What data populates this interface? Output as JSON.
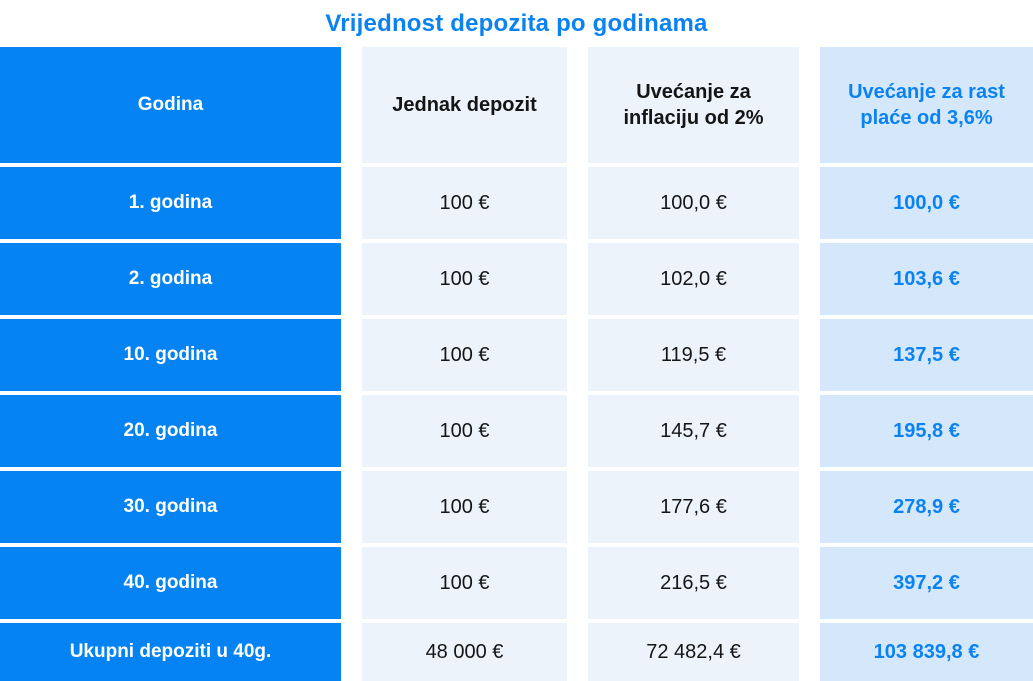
{
  "page": {
    "title": "Vrijednost depozita po godinama"
  },
  "colors": {
    "primary_blue": "#0583f2",
    "accent_text_blue": "#0b82f2",
    "light_cell_bg": "#ecf3fb",
    "accent_cell_bg": "#d5e8fb",
    "text_dark": "#151515",
    "text_white": "#ffffff",
    "page_bg": "#ffffff"
  },
  "chart_data": {
    "type": "table",
    "title": "Vrijednost depozita po godinama",
    "columns": [
      "Godina",
      "Jednak depozit",
      "Uvećanje za inflaciju od 2%",
      "Uvećanje za rast plaće od 3,6%"
    ],
    "rows": [
      [
        "1. godina",
        "100 €",
        "100,0 €",
        "100,0 €"
      ],
      [
        "2. godina",
        "100 €",
        "102,0 €",
        "103,6 €"
      ],
      [
        "10. godina",
        "100 €",
        "119,5 €",
        "137,5 €"
      ],
      [
        "20. godina",
        "100 €",
        "145,7 €",
        "195,8 €"
      ],
      [
        "30. godina",
        "100 €",
        "177,6 €",
        "278,9 €"
      ],
      [
        "40. godina",
        "100 €",
        "216,5 €",
        "397,2 €"
      ],
      [
        "Ukupni depoziti u 40g.",
        "48 000 €",
        "72 482,4 €",
        "103 839,8 €"
      ]
    ],
    "layout": {
      "header_row": true,
      "totals_row_label": "Ukupni depoziti u 40g.",
      "column_emphasis": [
        "blue-solid",
        "light",
        "light",
        "accent-blue-bold"
      ]
    }
  }
}
